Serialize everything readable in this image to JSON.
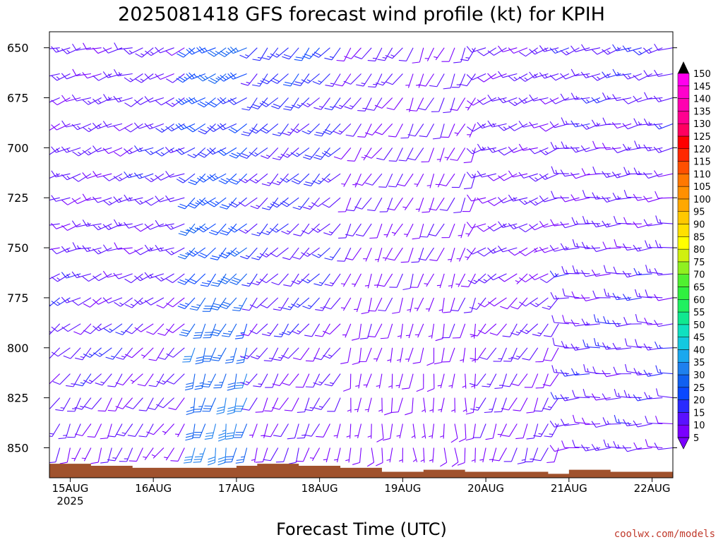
{
  "chart_data": {
    "type": "wind-barb time-height profile",
    "title": "2025081418 GFS forecast wind profile (kt) for KPIH",
    "xlabel": "Forecast Time (UTC)",
    "ylabel": "",
    "credit": "coolwx.com/models",
    "x_ticks": [
      {
        "label": "15AUG",
        "sub": "2025",
        "hour": 6
      },
      {
        "label": "16AUG",
        "sub": "",
        "hour": 30
      },
      {
        "label": "17AUG",
        "sub": "",
        "hour": 54
      },
      {
        "label": "18AUG",
        "sub": "",
        "hour": 78
      },
      {
        "label": "19AUG",
        "sub": "",
        "hour": 102
      },
      {
        "label": "20AUG",
        "sub": "",
        "hour": 126
      },
      {
        "label": "21AUG",
        "sub": "",
        "hour": 150
      },
      {
        "label": "22AUG",
        "sub": "",
        "hour": 174
      }
    ],
    "xlim_hours": [
      0,
      180
    ],
    "forecast_step_hours": 3,
    "y_ticks": [
      "650",
      "675",
      "700",
      "725",
      "750",
      "775",
      "800",
      "825",
      "850"
    ],
    "ylim_mb": [
      642,
      865
    ],
    "pressure_levels_mb": [
      650,
      663,
      675,
      688,
      700,
      713,
      725,
      738,
      750,
      763,
      775,
      788,
      800,
      813,
      825,
      838,
      850
    ],
    "colorbar": {
      "unit": "kt",
      "levels": [
        5,
        10,
        15,
        20,
        25,
        30,
        35,
        40,
        45,
        50,
        55,
        60,
        65,
        70,
        75,
        80,
        85,
        90,
        95,
        100,
        105,
        110,
        115,
        120,
        125,
        130,
        135,
        140,
        145,
        150
      ],
      "colors": [
        "#7a00ff",
        "#5a10ff",
        "#2a2aff",
        "#0a48ff",
        "#1060f0",
        "#1e80ee",
        "#1aa8ee",
        "#14c8e0",
        "#10e0c0",
        "#10e890",
        "#20f060",
        "#30f040",
        "#50f030",
        "#90f020",
        "#d0f010",
        "#ffff00",
        "#ffe000",
        "#ffc800",
        "#ffa800",
        "#ff9000",
        "#ff7800",
        "#ff5000",
        "#ff2800",
        "#ff0000",
        "#ff0060",
        "#ff0090",
        "#ff00b0",
        "#ff00cc",
        "#ff00ee",
        "#e000ff"
      ]
    },
    "terrain_color": "#a0522d",
    "profile_segments": [
      {
        "hours": [
          0,
          27
        ],
        "levels": [
          [
            650,
            255,
            12
          ],
          [
            700,
            245,
            12
          ],
          [
            750,
            255,
            12
          ],
          [
            800,
            225,
            13
          ],
          [
            850,
            200,
            10
          ]
        ]
      },
      {
        "hours": [
          27,
          42
        ],
        "levels": [
          [
            650,
            240,
            12
          ],
          [
            700,
            245,
            14
          ],
          [
            750,
            250,
            12
          ],
          [
            800,
            220,
            10
          ],
          [
            850,
            215,
            9
          ]
        ]
      },
      {
        "hours": [
          42,
          60
        ],
        "levels": [
          [
            650,
            240,
            24
          ],
          [
            700,
            235,
            20
          ],
          [
            750,
            225,
            24
          ],
          [
            800,
            200,
            28
          ],
          [
            850,
            190,
            30
          ]
        ]
      },
      {
        "hours": [
          60,
          87
        ],
        "levels": [
          [
            650,
            220,
            18
          ],
          [
            700,
            225,
            16
          ],
          [
            750,
            225,
            14
          ],
          [
            800,
            215,
            12
          ],
          [
            850,
            200,
            9
          ]
        ]
      },
      {
        "hours": [
          87,
          105
        ],
        "levels": [
          [
            650,
            215,
            12
          ],
          [
            700,
            215,
            10
          ],
          [
            750,
            205,
            8
          ],
          [
            800,
            195,
            7
          ],
          [
            850,
            180,
            6
          ]
        ]
      },
      {
        "hours": [
          105,
          126
        ],
        "levels": [
          [
            650,
            205,
            10
          ],
          [
            700,
            205,
            9
          ],
          [
            750,
            205,
            8
          ],
          [
            800,
            190,
            7
          ],
          [
            850,
            175,
            6
          ]
        ]
      },
      {
        "hours": [
          126,
          150
        ],
        "levels": [
          [
            650,
            245,
            12
          ],
          [
            700,
            250,
            12
          ],
          [
            750,
            245,
            10
          ],
          [
            800,
            210,
            11
          ],
          [
            850,
            200,
            10
          ]
        ]
      },
      {
        "hours": [
          150,
          180
        ],
        "levels": [
          [
            650,
            250,
            14
          ],
          [
            700,
            260,
            12
          ],
          [
            750,
            265,
            12
          ],
          [
            800,
            270,
            13
          ],
          [
            850,
            265,
            12
          ]
        ]
      }
    ],
    "terrain_top_mb": [
      [
        0,
        858
      ],
      [
        12,
        859
      ],
      [
        24,
        860
      ],
      [
        36,
        860
      ],
      [
        48,
        860
      ],
      [
        54,
        859
      ],
      [
        60,
        858
      ],
      [
        72,
        859
      ],
      [
        84,
        860
      ],
      [
        96,
        862
      ],
      [
        108,
        861
      ],
      [
        120,
        862
      ],
      [
        132,
        862
      ],
      [
        144,
        863
      ],
      [
        150,
        861
      ],
      [
        162,
        862
      ],
      [
        168,
        862
      ],
      [
        180,
        860
      ]
    ]
  }
}
